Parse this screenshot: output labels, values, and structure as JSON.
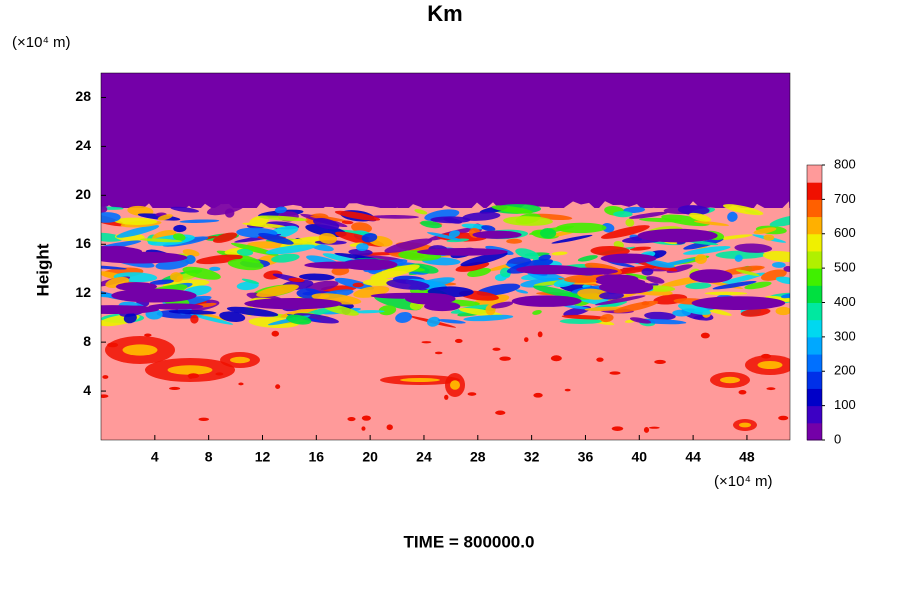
{
  "chart_data": {
    "type": "contour",
    "title": "Km",
    "y_label": "Height",
    "y_unit": "(×10⁴ m)",
    "x_unit": "(×10⁴ m)",
    "footer": "TIME = 800000.0",
    "xlim": [
      0,
      51.2
    ],
    "xticks": [
      4,
      8,
      12,
      16,
      20,
      24,
      28,
      32,
      36,
      40,
      44,
      48
    ],
    "ylim": [
      0,
      30
    ],
    "yticks": [
      4,
      8,
      12,
      16,
      20,
      24,
      28
    ],
    "colorbar": {
      "lim": [
        0,
        800
      ],
      "ticks": [
        0,
        100,
        200,
        300,
        400,
        500,
        600,
        700,
        800
      ],
      "colors": [
        "#7400a8",
        "#3c00c4",
        "#0000c8",
        "#0030e8",
        "#0070ff",
        "#00a8ff",
        "#00d8f0",
        "#00e8a0",
        "#00e040",
        "#40f000",
        "#b0f000",
        "#f0f000",
        "#ffb000",
        "#ff6000",
        "#f01000",
        "#ff9a9a"
      ]
    }
  }
}
